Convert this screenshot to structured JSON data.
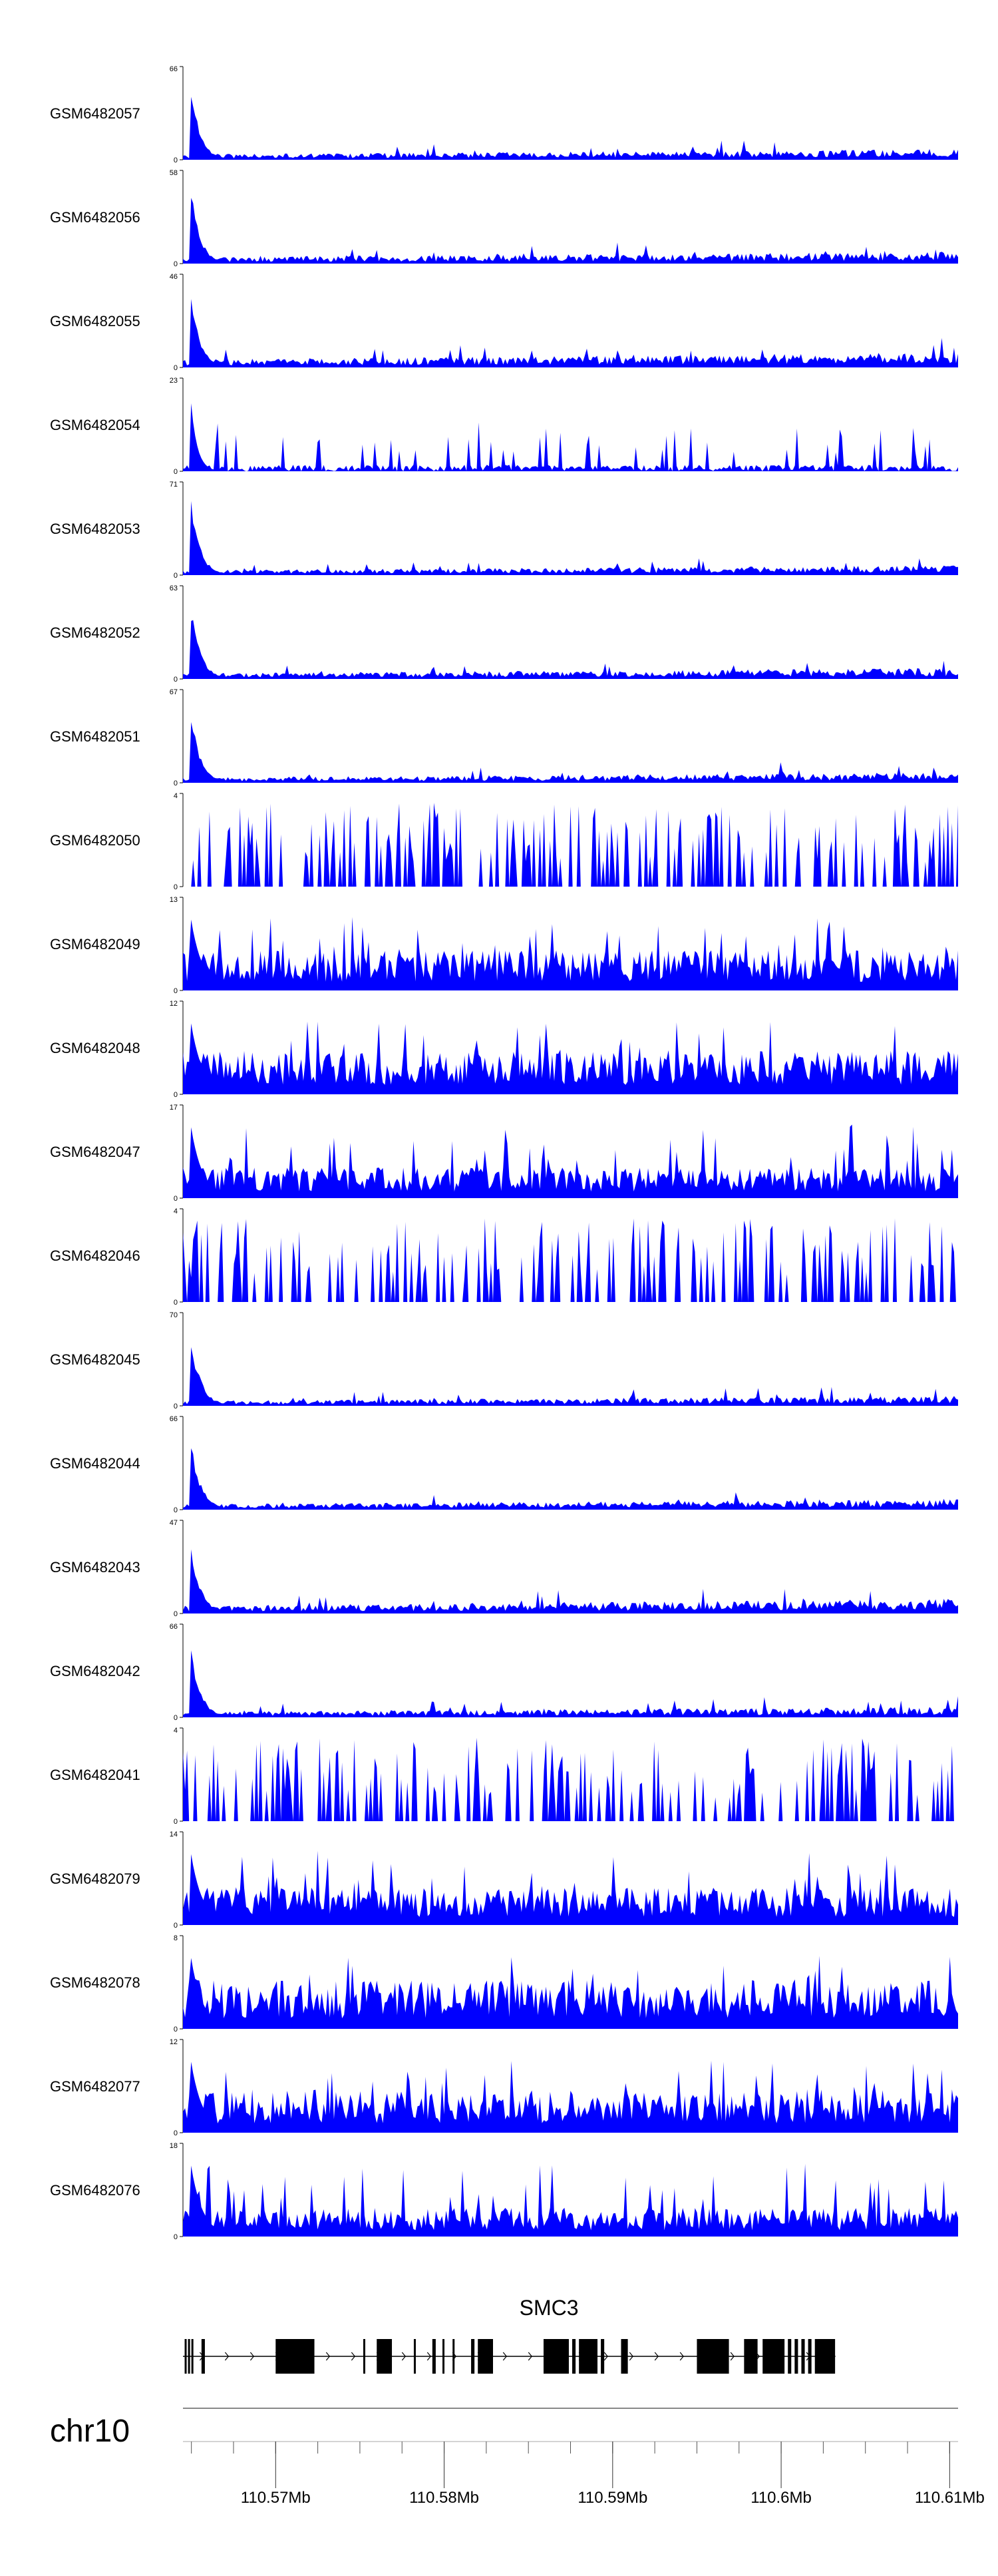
{
  "colors": {
    "track_fill": "#0000ff",
    "axis": "#000000",
    "gene": "#000000",
    "chrom_line": "#888888"
  },
  "chart_data": {
    "type": "area",
    "title": "",
    "xlabel": "",
    "ylabel": "",
    "xlim": [
      110.5645,
      110.6105
    ],
    "x_unit": "Mb",
    "tracks": [
      {
        "label": "GSM6482057",
        "ymax": 66,
        "baseline": 5,
        "profile": "peak"
      },
      {
        "label": "GSM6482056",
        "ymax": 58,
        "baseline": 5,
        "profile": "peak"
      },
      {
        "label": "GSM6482055",
        "ymax": 46,
        "baseline": 5,
        "profile": "peak"
      },
      {
        "label": "GSM6482054",
        "ymax": 23,
        "baseline": 4,
        "profile": "spiky"
      },
      {
        "label": "GSM6482053",
        "ymax": 71,
        "baseline": 5,
        "profile": "peak"
      },
      {
        "label": "GSM6482052",
        "ymax": 63,
        "baseline": 5,
        "profile": "peak"
      },
      {
        "label": "GSM6482051",
        "ymax": 67,
        "baseline": 5,
        "profile": "peak"
      },
      {
        "label": "GSM6482050",
        "ymax": 4,
        "baseline": 1.5,
        "profile": "noise"
      },
      {
        "label": "GSM6482049",
        "ymax": 13,
        "baseline": 4,
        "profile": "dense"
      },
      {
        "label": "GSM6482048",
        "ymax": 12,
        "baseline": 4,
        "profile": "dense"
      },
      {
        "label": "GSM6482047",
        "ymax": 17,
        "baseline": 4,
        "profile": "dense"
      },
      {
        "label": "GSM6482046",
        "ymax": 4,
        "baseline": 1.5,
        "profile": "noise"
      },
      {
        "label": "GSM6482045",
        "ymax": 70,
        "baseline": 5,
        "profile": "peak"
      },
      {
        "label": "GSM6482044",
        "ymax": 66,
        "baseline": 5,
        "profile": "peak"
      },
      {
        "label": "GSM6482043",
        "ymax": 47,
        "baseline": 5,
        "profile": "peak"
      },
      {
        "label": "GSM6482042",
        "ymax": 66,
        "baseline": 5,
        "profile": "peak"
      },
      {
        "label": "GSM6482041",
        "ymax": 4,
        "baseline": 1.5,
        "profile": "noise"
      },
      {
        "label": "GSM6482079",
        "ymax": 14,
        "baseline": 4,
        "profile": "dense"
      },
      {
        "label": "GSM6482078",
        "ymax": 8,
        "baseline": 3,
        "profile": "dense"
      },
      {
        "label": "GSM6482077",
        "ymax": 12,
        "baseline": 4,
        "profile": "dense"
      },
      {
        "label": "GSM6482076",
        "ymax": 18,
        "baseline": 4,
        "profile": "dense"
      }
    ],
    "gene": {
      "name": "SMC3",
      "start": 110.5645,
      "end": 110.6032,
      "exons": [
        [
          110.5646,
          110.5647
        ],
        [
          110.5648,
          110.5649
        ],
        [
          110.565,
          110.5651
        ],
        [
          110.5656,
          110.5658
        ],
        [
          110.57,
          110.5723
        ],
        [
          110.5752,
          110.5753
        ],
        [
          110.576,
          110.5769
        ],
        [
          110.5782,
          110.5783
        ],
        [
          110.5793,
          110.5795
        ],
        [
          110.5799,
          110.58
        ],
        [
          110.5805,
          110.5806
        ],
        [
          110.5816,
          110.5818
        ],
        [
          110.582,
          110.5829
        ],
        [
          110.5859,
          110.5874
        ],
        [
          110.5876,
          110.5878
        ],
        [
          110.588,
          110.5891
        ],
        [
          110.5893,
          110.5895
        ],
        [
          110.5905,
          110.5909
        ],
        [
          110.595,
          110.5969
        ],
        [
          110.5978,
          110.5986
        ],
        [
          110.5989,
          110.6002
        ],
        [
          110.6004,
          110.6006
        ],
        [
          110.6008,
          110.601
        ],
        [
          110.6012,
          110.6014
        ],
        [
          110.6016,
          110.6018
        ],
        [
          110.602,
          110.6032
        ]
      ]
    },
    "chromosome": "chr10",
    "ticks": [
      {
        "pos": 110.57,
        "label": "110.57Mb"
      },
      {
        "pos": 110.58,
        "label": "110.58Mb"
      },
      {
        "pos": 110.59,
        "label": "110.59Mb"
      },
      {
        "pos": 110.6,
        "label": "110.6Mb"
      },
      {
        "pos": 110.61,
        "label": "110.61Mb"
      }
    ],
    "minor_tick_step": 0.0025
  }
}
